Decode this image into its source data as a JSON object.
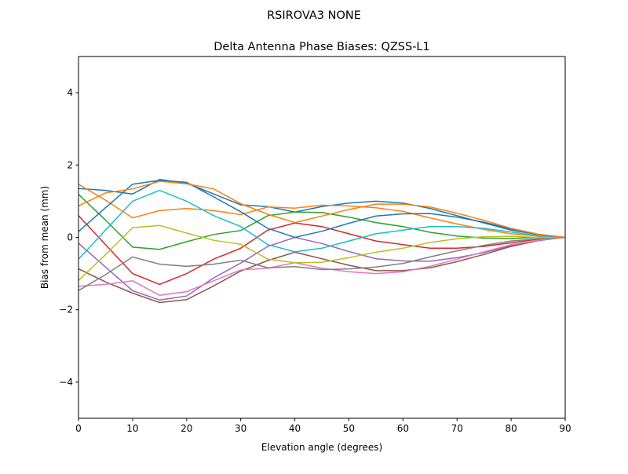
{
  "suptitle": "RSIROVA3        NONE",
  "chart_data": {
    "type": "line",
    "title": "Delta Antenna Phase Biases: QZSS-L1",
    "xlabel": "Elevation angle (degrees)",
    "ylabel": "Bias from mean (mm)",
    "xlim": [
      0,
      90
    ],
    "ylim": [
      -5,
      5
    ],
    "xticks": [
      0,
      10,
      20,
      30,
      40,
      50,
      60,
      70,
      80,
      90
    ],
    "yticks": [
      -4,
      -2,
      0,
      2,
      4
    ],
    "ytick_labels": [
      "−4",
      "−2",
      "0",
      "2",
      "4"
    ],
    "grid": false,
    "legend": "none",
    "colors": [
      "#1f77b4",
      "#ff7f0e",
      "#2ca02c",
      "#d62728",
      "#9467bd",
      "#8c564b",
      "#e377c2",
      "#7f7f7f",
      "#bcbd22",
      "#17becf"
    ],
    "x": [
      0,
      5,
      10,
      15,
      20,
      25,
      30,
      35,
      40,
      45,
      50,
      55,
      60,
      65,
      70,
      75,
      80,
      85,
      90
    ],
    "series": [
      {
        "values": [
          1.35,
          1.3,
          1.2,
          1.6,
          1.5,
          1.2,
          0.9,
          0.85,
          0.7,
          0.85,
          0.95,
          1.0,
          0.95,
          0.8,
          0.6,
          0.4,
          0.2,
          0.08,
          0
        ]
      },
      {
        "values": [
          1.47,
          1.03,
          0.54,
          0.74,
          0.8,
          0.74,
          0.63,
          0.84,
          0.81,
          0.89,
          0.87,
          0.82,
          0.72,
          0.54,
          0.37,
          0.22,
          0.1,
          0.04,
          0
        ]
      },
      {
        "values": [
          1.19,
          0.48,
          -0.27,
          -0.33,
          -0.12,
          0.08,
          0.19,
          0.6,
          0.7,
          0.69,
          0.56,
          0.41,
          0.3,
          0.14,
          0.04,
          -0.02,
          -0.03,
          0.0,
          0
        ]
      },
      {
        "values": [
          0.6,
          -0.2,
          -1.0,
          -1.3,
          -1.0,
          -0.6,
          -0.3,
          0.2,
          0.4,
          0.3,
          0.1,
          -0.1,
          -0.2,
          -0.3,
          -0.3,
          -0.25,
          -0.15,
          -0.05,
          0
        ]
      },
      {
        "values": [
          -0.16,
          -0.82,
          -1.47,
          -1.73,
          -1.62,
          -1.12,
          -0.71,
          -0.25,
          0.0,
          -0.17,
          -0.39,
          -0.59,
          -0.65,
          -0.66,
          -0.56,
          -0.42,
          -0.23,
          -0.08,
          0
        ]
      },
      {
        "values": [
          -0.87,
          -1.23,
          -1.54,
          -1.8,
          -1.72,
          -1.34,
          -0.93,
          -0.64,
          -0.41,
          -0.59,
          -0.77,
          -0.92,
          -0.92,
          -0.84,
          -0.67,
          -0.47,
          -0.25,
          -0.09,
          0
        ]
      },
      {
        "values": [
          -1.35,
          -1.3,
          -1.2,
          -1.6,
          -1.5,
          -1.2,
          -0.9,
          -0.85,
          -0.7,
          -0.85,
          -0.95,
          -1.0,
          -0.95,
          -0.8,
          -0.6,
          -0.4,
          -0.2,
          -0.08,
          0
        ]
      },
      {
        "values": [
          -1.47,
          -1.03,
          -0.54,
          -0.74,
          -0.8,
          -0.74,
          -0.63,
          -0.84,
          -0.81,
          -0.89,
          -0.87,
          -0.82,
          -0.72,
          -0.54,
          -0.37,
          -0.22,
          -0.1,
          -0.04,
          0
        ]
      },
      {
        "values": [
          -1.19,
          -0.48,
          0.27,
          0.33,
          0.12,
          -0.08,
          -0.19,
          -0.6,
          -0.7,
          -0.69,
          -0.56,
          -0.41,
          -0.3,
          -0.14,
          -0.04,
          0.02,
          0.03,
          0.0,
          0
        ]
      },
      {
        "values": [
          -0.6,
          0.2,
          1.0,
          1.3,
          1.0,
          0.6,
          0.3,
          -0.2,
          -0.4,
          -0.3,
          -0.1,
          0.1,
          0.2,
          0.3,
          0.3,
          0.25,
          0.15,
          0.05,
          0
        ]
      },
      {
        "values": [
          0.16,
          0.82,
          1.47,
          1.58,
          1.52,
          1.12,
          0.71,
          0.25,
          0.0,
          0.17,
          0.39,
          0.59,
          0.65,
          0.66,
          0.56,
          0.42,
          0.23,
          0.08,
          0
        ]
      },
      {
        "values": [
          0.87,
          1.23,
          1.34,
          1.55,
          1.48,
          1.34,
          0.93,
          0.64,
          0.41,
          0.59,
          0.77,
          0.92,
          0.92,
          0.84,
          0.67,
          0.47,
          0.25,
          0.09,
          0
        ]
      }
    ]
  }
}
